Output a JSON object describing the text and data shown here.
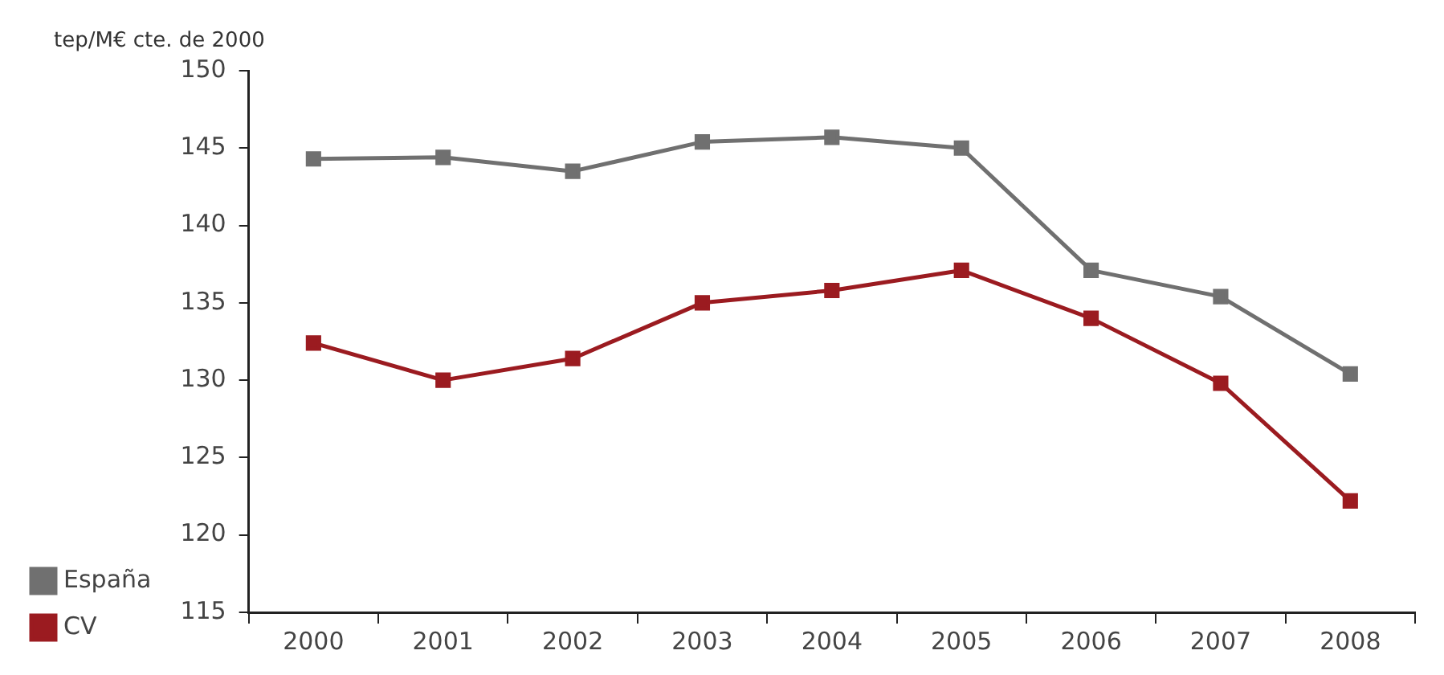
{
  "chart_data": {
    "type": "line",
    "ylabel": "tep/M€ cte. de 2000",
    "categories": [
      "2000",
      "2001",
      "2002",
      "2003",
      "2004",
      "2005",
      "2006",
      "2007",
      "2008"
    ],
    "series": [
      {
        "name": "España",
        "color": "#707070",
        "values": [
          144.3,
          144.4,
          143.5,
          145.4,
          145.7,
          145.0,
          137.1,
          135.4,
          130.4
        ]
      },
      {
        "name": "CV",
        "color": "#9b1b20",
        "values": [
          132.4,
          130.0,
          131.4,
          135.0,
          135.8,
          137.1,
          134.0,
          129.8,
          122.2
        ]
      }
    ],
    "ylim": [
      115,
      150
    ],
    "yticks": [
      115,
      120,
      125,
      130,
      135,
      140,
      145,
      150
    ],
    "grid": false,
    "legend": "bottom left",
    "marker": "square",
    "line_style": "solid"
  }
}
